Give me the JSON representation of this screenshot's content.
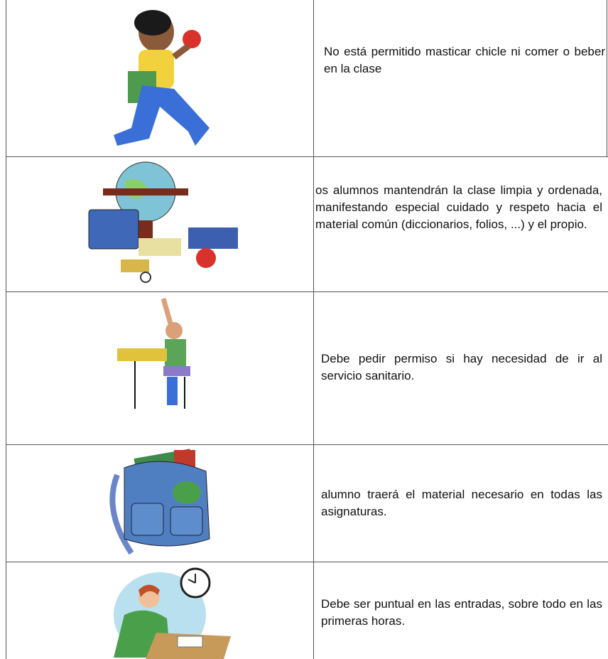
{
  "table": {
    "rows": [
      {
        "text": "No está permitido masticar chicle ni comer o beber en la clase"
      },
      {
        "text": "os alumnos mantendrán la clase limpia y ordenada, manifestando especial cuidado y respeto hacia el material común (diccionarios, folios, ...) y el propio."
      },
      {
        "text": "Debe pedir permiso si hay necesidad de ir al servicio sanitario."
      },
      {
        "text": "alumno traerá el material necesario en todas las asignaturas."
      },
      {
        "text": "Debe ser puntual en las entradas, sobre todo en las primeras horas."
      }
    ]
  }
}
